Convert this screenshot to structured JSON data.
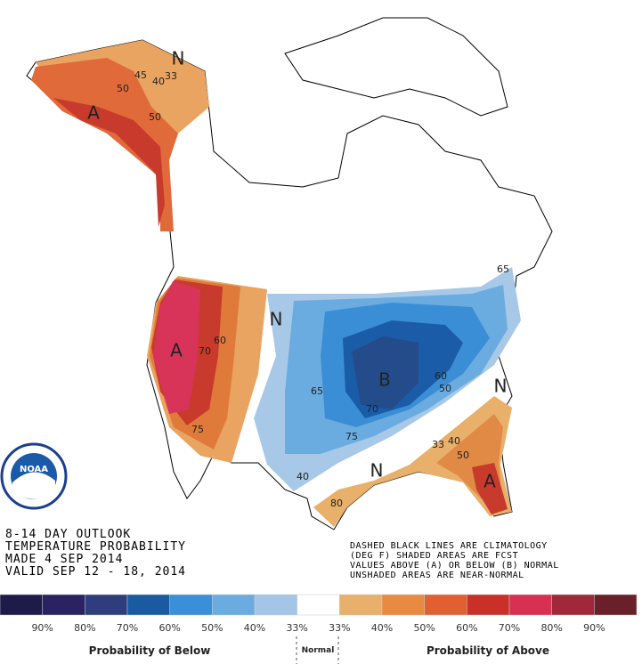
{
  "logo": "NOAA",
  "title_block": [
    "8-14 DAY OUTLOOK",
    "TEMPERATURE PROBABILITY",
    "MADE  4 SEP 2014",
    "VALID  SEP 12 - 18, 2014"
  ],
  "notes": [
    "DASHED BLACK LINES ARE CLIMATOLOGY",
    "(DEG F) SHADED AREAS ARE FCST",
    "VALUES ABOVE (A) OR BELOW (B) NORMAL",
    "UNSHADED AREAS ARE NEAR-NORMAL"
  ],
  "map_labels": [
    "N",
    "45",
    "40",
    "33",
    "50",
    "A",
    "50",
    "N",
    "A",
    "60",
    "70",
    "75",
    "65",
    "B",
    "60",
    "50",
    "70",
    "75",
    "40",
    "N",
    "33",
    "40",
    "50",
    "A",
    "N",
    "80",
    "65"
  ],
  "legend": {
    "colors": [
      "#1e1a4a",
      "#2a2262",
      "#2e3e7c",
      "#1a5aa0",
      "#3a90d8",
      "#6aace0",
      "#a4c6e6",
      "#ffffff",
      "#e8b06a",
      "#e88a40",
      "#e06030",
      "#c83028",
      "#d83050",
      "#a02838",
      "#6a2028"
    ],
    "labels": [
      "90%",
      "80%",
      "70%",
      "60%",
      "50%",
      "40%",
      "33%",
      "33%",
      "40%",
      "50%",
      "60%",
      "70%",
      "80%",
      "90%"
    ],
    "captions": [
      "Probability of Below",
      "Normal",
      "Probability of Above"
    ]
  }
}
